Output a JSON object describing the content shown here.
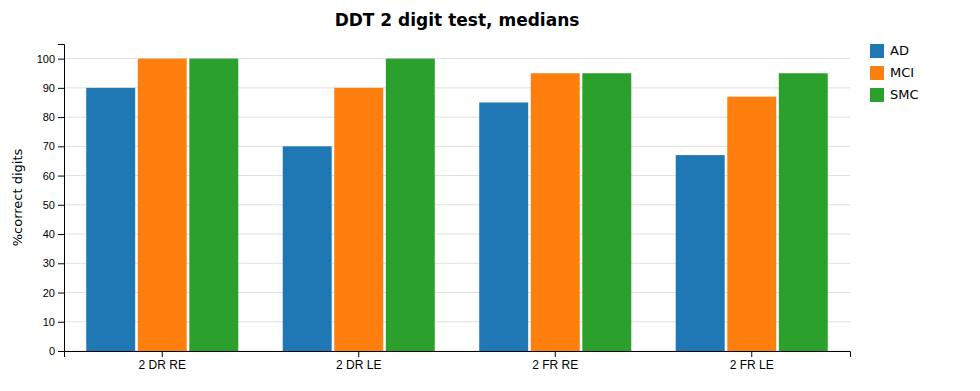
{
  "chart_data": {
    "type": "bar",
    "title": "DDT 2 digit test, medians",
    "ylabel": "%correct digits",
    "categories": [
      "2 DR RE",
      "2 DR LE",
      "2 FR RE",
      "2 FR LE"
    ],
    "series": [
      {
        "name": "AD",
        "values": [
          90,
          70,
          85,
          67
        ]
      },
      {
        "name": "MCI",
        "values": [
          100,
          90,
          95,
          87
        ]
      },
      {
        "name": "SMC",
        "values": [
          100,
          100,
          95,
          95
        ]
      }
    ],
    "ylim": [
      0,
      105
    ],
    "yticks": [
      0,
      10,
      20,
      30,
      40,
      50,
      60,
      70,
      80,
      90,
      100
    ],
    "grid": true,
    "legend": "upper right"
  }
}
